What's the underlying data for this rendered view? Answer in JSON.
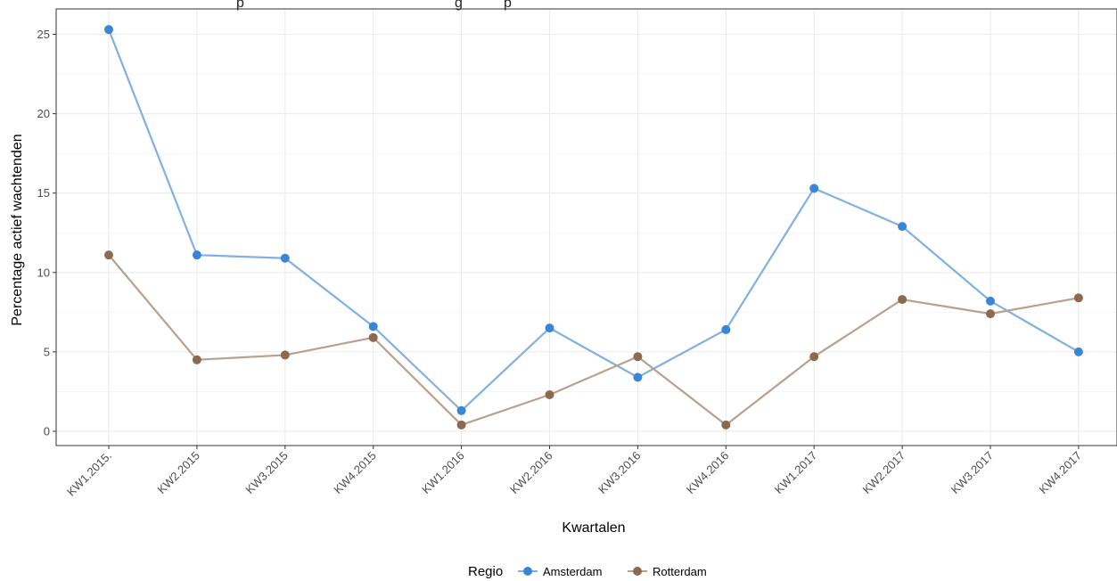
{
  "chart_data": {
    "type": "line",
    "title_fragments": [
      "p",
      "g",
      "p"
    ],
    "xlabel": "Kwartalen",
    "ylabel": "Percentage actief wachtenden",
    "categories": [
      "KW1.2015.",
      "KW2.2015",
      "KW3.2015",
      "KW4.2015",
      "KW1.2016",
      "KW2.2016",
      "KW3.2016",
      "KW4.2016",
      "KW1.2017",
      "KW2.2017",
      "KW3.2017",
      "KW4.2017"
    ],
    "yticks": [
      0,
      5,
      10,
      15,
      20,
      25
    ],
    "ylim": [
      -0.9,
      26.6
    ],
    "grid": true,
    "legend": {
      "title": "Regio",
      "position": "bottom"
    },
    "series": [
      {
        "name": "Amsterdam",
        "color": "#3a86d6",
        "line_color": "#82b0e2",
        "values": [
          25.3,
          11.1,
          10.9,
          6.6,
          1.3,
          6.5,
          3.4,
          6.4,
          15.3,
          12.9,
          8.2,
          5.0
        ]
      },
      {
        "name": "Rotterdam",
        "color": "#8b6a50",
        "line_color": "#b8a18e",
        "values": [
          11.1,
          4.5,
          4.8,
          5.9,
          0.4,
          2.3,
          4.7,
          0.4,
          4.7,
          8.3,
          7.4,
          8.4
        ]
      }
    ]
  }
}
